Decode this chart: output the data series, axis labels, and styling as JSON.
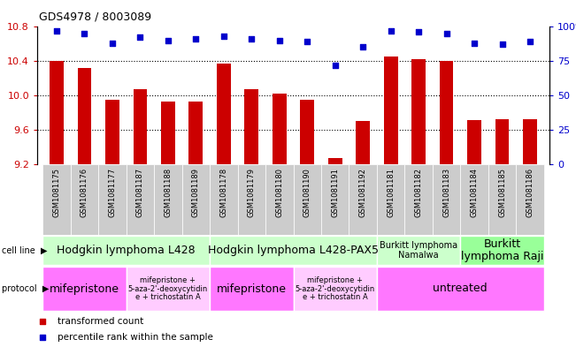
{
  "title": "GDS4978 / 8003089",
  "samples": [
    "GSM1081175",
    "GSM1081176",
    "GSM1081177",
    "GSM1081187",
    "GSM1081188",
    "GSM1081189",
    "GSM1081178",
    "GSM1081179",
    "GSM1081180",
    "GSM1081190",
    "GSM1081191",
    "GSM1081192",
    "GSM1081181",
    "GSM1081182",
    "GSM1081183",
    "GSM1081184",
    "GSM1081185",
    "GSM1081186"
  ],
  "bar_values": [
    10.4,
    10.32,
    9.95,
    10.07,
    9.93,
    9.93,
    10.37,
    10.07,
    10.02,
    9.95,
    9.27,
    9.7,
    10.45,
    10.42,
    10.4,
    9.71,
    9.72,
    9.72
  ],
  "dot_values": [
    97,
    95,
    88,
    92,
    90,
    91,
    93,
    91,
    90,
    89,
    72,
    85,
    97,
    96,
    95,
    88,
    87,
    89
  ],
  "ylim_left": [
    9.2,
    10.8
  ],
  "ylim_right": [
    0,
    100
  ],
  "yticks_left": [
    9.2,
    9.6,
    10.0,
    10.4,
    10.8
  ],
  "yticks_right": [
    0,
    25,
    50,
    75,
    100
  ],
  "bar_color": "#CC0000",
  "dot_color": "#0000CC",
  "bar_bottom": 9.2,
  "sample_bg_color": "#CCCCCC",
  "cell_line_groups": [
    {
      "label": "Hodgkin lymphoma L428",
      "start": 0,
      "end": 6,
      "color": "#CCFFCC",
      "fontsize": 9
    },
    {
      "label": "Hodgkin lymphoma L428-PAX5",
      "start": 6,
      "end": 12,
      "color": "#CCFFCC",
      "fontsize": 9
    },
    {
      "label": "Burkitt lymphoma\nNamalwa",
      "start": 12,
      "end": 15,
      "color": "#CCFFCC",
      "fontsize": 7
    },
    {
      "label": "Burkitt\nlymphoma Raji",
      "start": 15,
      "end": 18,
      "color": "#99FF99",
      "fontsize": 9
    }
  ],
  "protocol_groups": [
    {
      "label": "mifepristone",
      "start": 0,
      "end": 3,
      "color": "#FF77FF",
      "fontsize": 9
    },
    {
      "label": "mifepristone +\n5-aza-2'-deoxycytidin\ne + trichostatin A",
      "start": 3,
      "end": 6,
      "color": "#FFCCFF",
      "fontsize": 6
    },
    {
      "label": "mifepristone",
      "start": 6,
      "end": 9,
      "color": "#FF77FF",
      "fontsize": 9
    },
    {
      "label": "mifepristone +\n5-aza-2'-deoxycytidin\ne + trichostatin A",
      "start": 9,
      "end": 12,
      "color": "#FFCCFF",
      "fontsize": 6
    },
    {
      "label": "untreated",
      "start": 12,
      "end": 18,
      "color": "#FF77FF",
      "fontsize": 9
    }
  ],
  "legend_items": [
    {
      "label": "transformed count",
      "color": "#CC0000"
    },
    {
      "label": "percentile rank within the sample",
      "color": "#0000CC"
    }
  ],
  "label_row_left": "cell line",
  "label_row2_left": "protocol",
  "arrow_color": "#999999"
}
